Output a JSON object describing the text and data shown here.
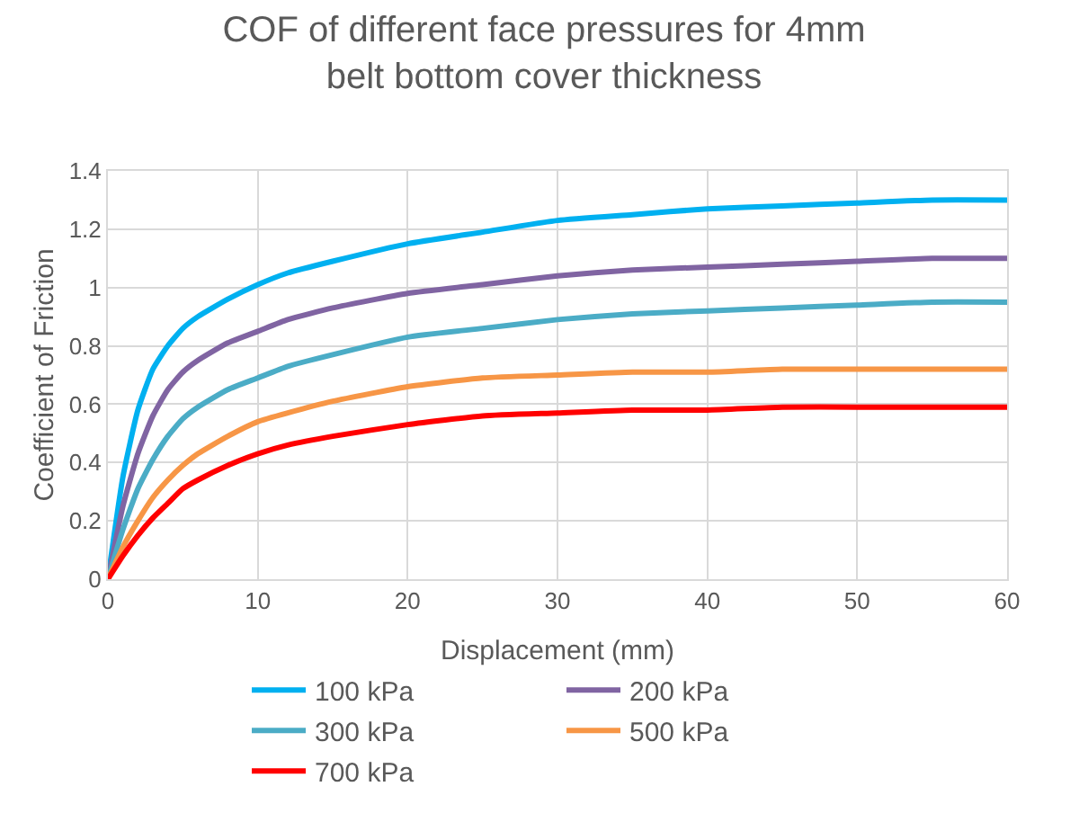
{
  "chart_data": {
    "type": "line",
    "title": "COF of different face pressures for 4mm belt bottom cover thickness",
    "xlabel": "Displacement (mm)",
    "ylabel": "Coefficient of Friction",
    "x": [
      0,
      1,
      2,
      3,
      4,
      5,
      6,
      8,
      10,
      12,
      15,
      20,
      25,
      30,
      35,
      40,
      45,
      50,
      55,
      60
    ],
    "series": [
      {
        "name": "100 kPa",
        "color": "#00b0f0",
        "values": [
          0,
          0.35,
          0.58,
          0.72,
          0.8,
          0.86,
          0.9,
          0.96,
          1.01,
          1.05,
          1.09,
          1.15,
          1.19,
          1.23,
          1.25,
          1.27,
          1.28,
          1.29,
          1.3,
          1.3
        ]
      },
      {
        "name": "200 kPa",
        "color": "#8064a2",
        "values": [
          0,
          0.25,
          0.43,
          0.56,
          0.65,
          0.71,
          0.75,
          0.81,
          0.85,
          0.89,
          0.93,
          0.98,
          1.01,
          1.04,
          1.06,
          1.07,
          1.08,
          1.09,
          1.1,
          1.1
        ]
      },
      {
        "name": "300 kPa",
        "color": "#4bacc6",
        "values": [
          0,
          0.17,
          0.31,
          0.41,
          0.49,
          0.55,
          0.59,
          0.65,
          0.69,
          0.73,
          0.77,
          0.83,
          0.86,
          0.89,
          0.91,
          0.92,
          0.93,
          0.94,
          0.95,
          0.95
        ]
      },
      {
        "name": "500 kPa",
        "color": "#f79646",
        "values": [
          0,
          0.11,
          0.2,
          0.28,
          0.34,
          0.39,
          0.43,
          0.49,
          0.54,
          0.57,
          0.61,
          0.66,
          0.69,
          0.7,
          0.71,
          0.71,
          0.72,
          0.72,
          0.72,
          0.72
        ]
      },
      {
        "name": "700 kPa",
        "color": "#ff0000",
        "values": [
          0,
          0.08,
          0.15,
          0.21,
          0.26,
          0.31,
          0.34,
          0.39,
          0.43,
          0.46,
          0.49,
          0.53,
          0.56,
          0.57,
          0.58,
          0.58,
          0.59,
          0.59,
          0.59,
          0.59
        ]
      }
    ],
    "xlim": [
      0,
      60
    ],
    "xticks": [
      0,
      10,
      20,
      30,
      40,
      50,
      60
    ],
    "ylim": [
      0,
      1.4
    ],
    "yticks": [
      0,
      0.2,
      0.4,
      0.6,
      0.8,
      1,
      1.2,
      1.4
    ],
    "grid": true,
    "legend": "bottom",
    "marker": "none",
    "line_style": "solid"
  }
}
